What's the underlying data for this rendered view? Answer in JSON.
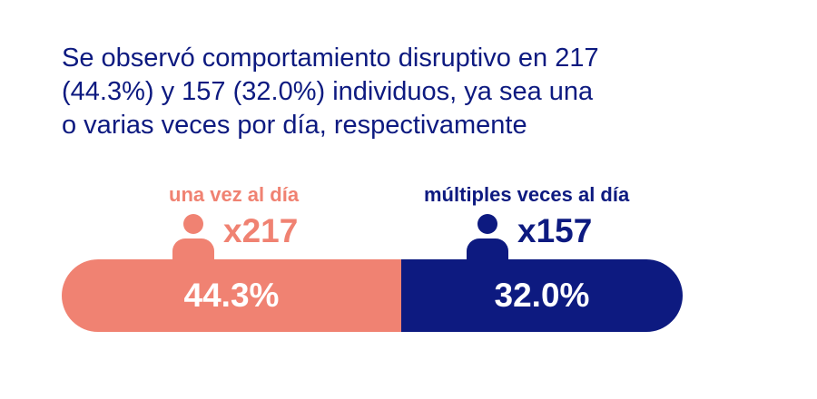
{
  "headline": {
    "line1": "Se observó comportamiento disruptivo en 217",
    "line2": "(44.3%) y 157 (32.0%) individuos, ya sea una",
    "line3": "o varias veces por día, respectivamente"
  },
  "groups": [
    {
      "label": "una vez al día",
      "count": "x217",
      "percent": "44.3%",
      "icon": "person-icon",
      "color": "#F08272"
    },
    {
      "label": "múltiples veces al día",
      "count": "x157",
      "percent": "32.0%",
      "icon": "person-icon",
      "color": "#0D1A80"
    }
  ],
  "colors": {
    "salmon": "#F08272",
    "blue": "#0D1A80",
    "background": "#FFFFFF"
  }
}
